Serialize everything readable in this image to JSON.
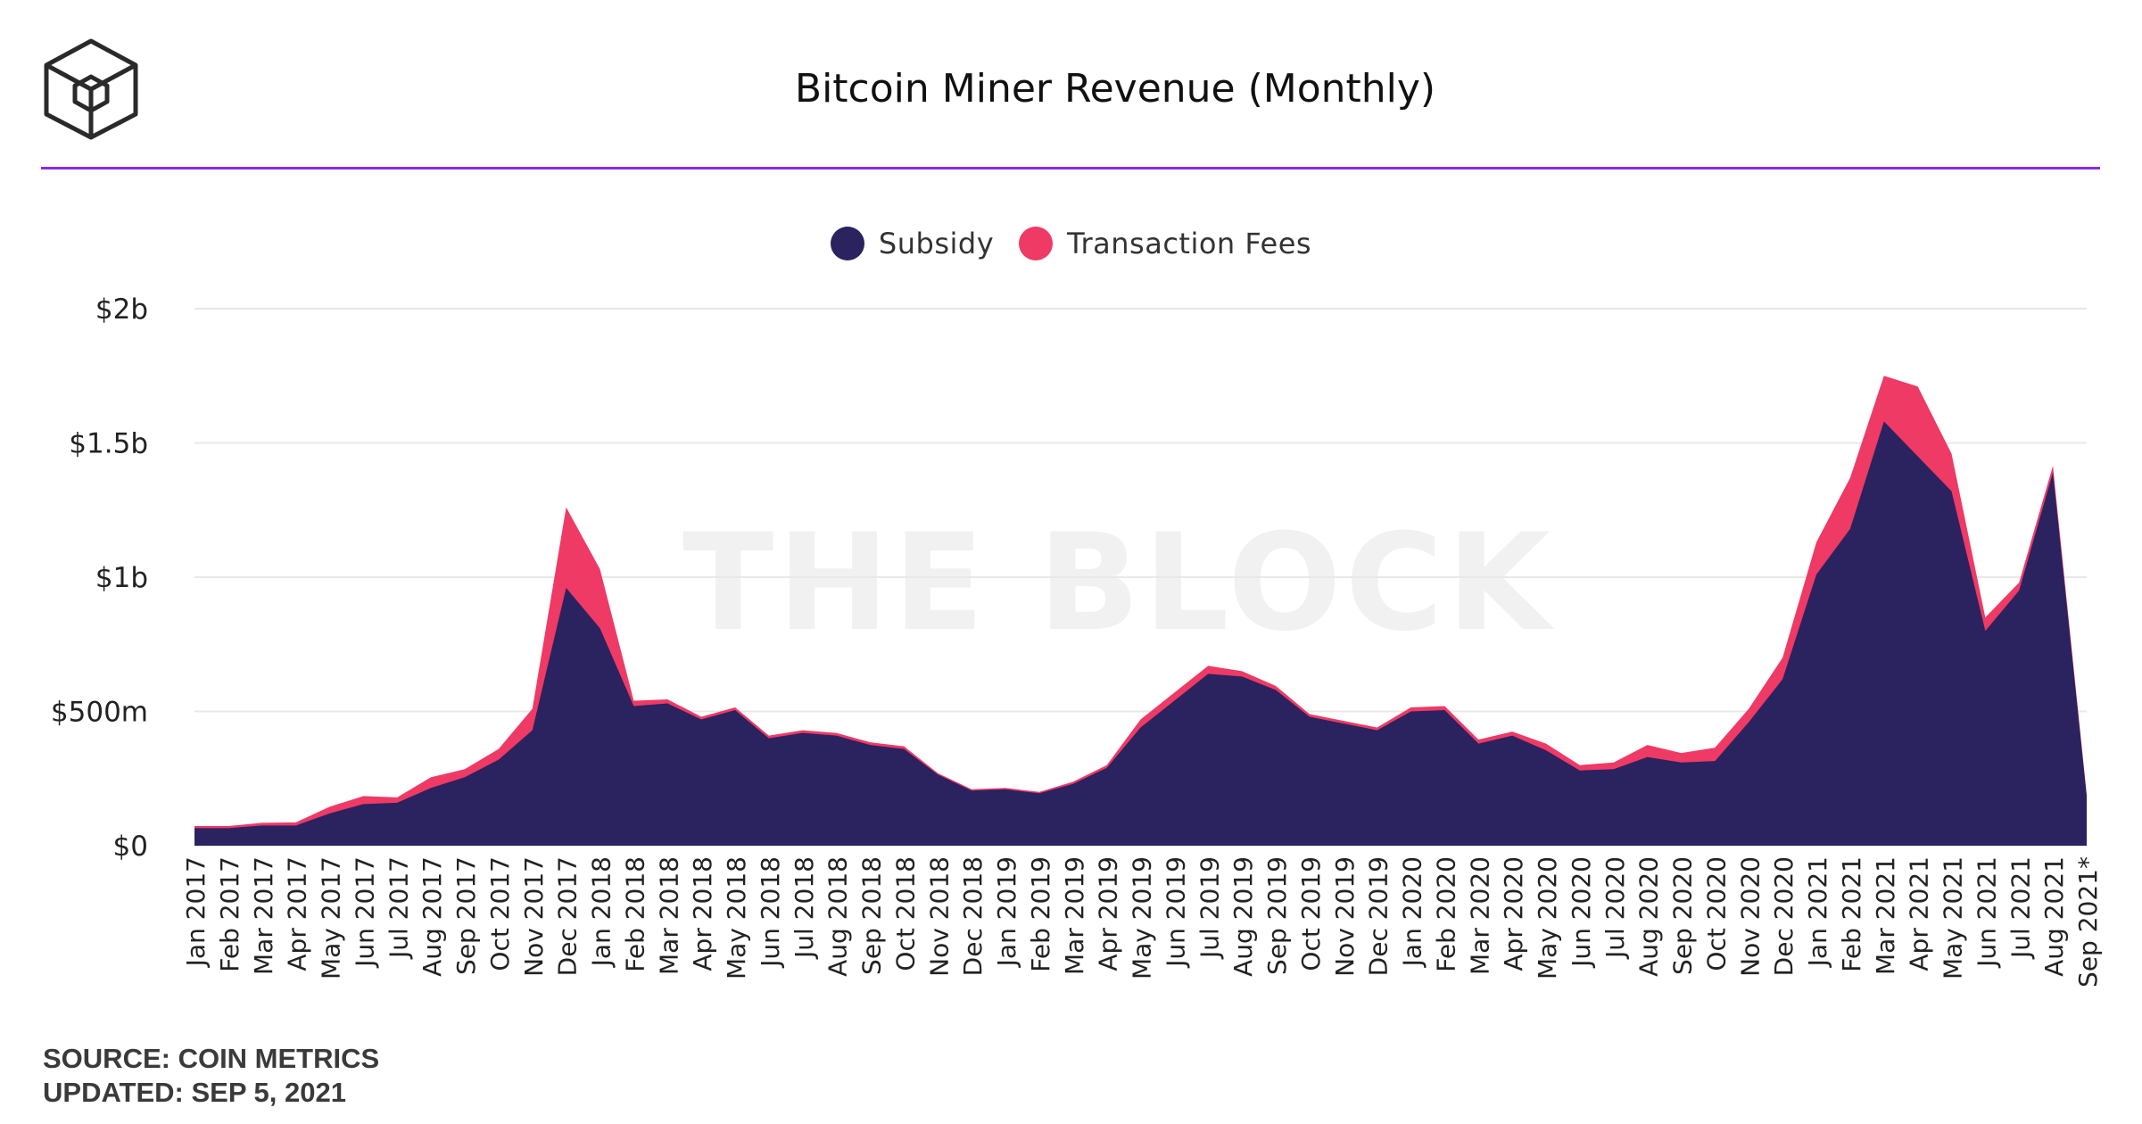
{
  "header": {
    "title": "Bitcoin Miner Revenue (Monthly)",
    "logo_icon": "the-block-cube-logo",
    "rule_color": "#8a2be2"
  },
  "watermark": "THE BLOCK",
  "footer": {
    "source": "SOURCE: COIN METRICS",
    "updated": "UPDATED: SEP 5, 2021"
  },
  "colors": {
    "subsidy": "#2b2260",
    "fees": "#ee3a64",
    "grid": "#e8e8e8",
    "axis_text": "#222222"
  },
  "chart_data": {
    "type": "area",
    "stacked": true,
    "title": "Bitcoin Miner Revenue (Monthly)",
    "legend_position": "top-center",
    "grid": true,
    "ylim": [
      0,
      2000
    ],
    "y_unit": "millions USD",
    "yticks": [
      {
        "value": 0,
        "label": "$0"
      },
      {
        "value": 500,
        "label": "$500m"
      },
      {
        "value": 1000,
        "label": "$1b"
      },
      {
        "value": 1500,
        "label": "$1.5b"
      },
      {
        "value": 2000,
        "label": "$2b"
      }
    ],
    "categories": [
      "Jan 2017",
      "Feb 2017",
      "Mar 2017",
      "Apr 2017",
      "May 2017",
      "Jun 2017",
      "Jul 2017",
      "Aug 2017",
      "Sep 2017",
      "Oct 2017",
      "Nov 2017",
      "Dec 2017",
      "Jan 2018",
      "Feb 2018",
      "Mar 2018",
      "Apr 2018",
      "May 2018",
      "Jun 2018",
      "Jul 2018",
      "Aug 2018",
      "Sep 2018",
      "Oct 2018",
      "Nov 2018",
      "Dec 2018",
      "Jan 2019",
      "Feb 2019",
      "Mar 2019",
      "Apr 2019",
      "May 2019",
      "Jun 2019",
      "Jul 2019",
      "Aug 2019",
      "Sep 2019",
      "Oct 2019",
      "Nov 2019",
      "Dec 2019",
      "Jan 2020",
      "Feb 2020",
      "Mar 2020",
      "Apr 2020",
      "May 2020",
      "Jun 2020",
      "Jul 2020",
      "Aug 2020",
      "Sep 2020",
      "Oct 2020",
      "Nov 2020",
      "Dec 2020",
      "Jan 2021",
      "Feb 2021",
      "Mar 2021",
      "Apr 2021",
      "May 2021",
      "Jun 2021",
      "Jul 2021",
      "Aug 2021",
      "Sep 2021*"
    ],
    "series": [
      {
        "name": "Subsidy",
        "values": [
          65,
          65,
          75,
          75,
          120,
          155,
          160,
          215,
          255,
          320,
          430,
          960,
          810,
          520,
          530,
          470,
          505,
          400,
          420,
          410,
          375,
          360,
          265,
          205,
          210,
          195,
          230,
          290,
          440,
          540,
          640,
          630,
          580,
          480,
          455,
          430,
          500,
          505,
          380,
          410,
          355,
          280,
          285,
          330,
          310,
          315,
          460,
          620,
          1010,
          1180,
          1580,
          1450,
          1320,
          800,
          950,
          1390,
          185
        ],
        "color": "#2b2260"
      },
      {
        "name": "Transaction Fees",
        "values": [
          8,
          8,
          10,
          12,
          25,
          30,
          20,
          40,
          30,
          40,
          80,
          300,
          220,
          20,
          15,
          10,
          10,
          10,
          10,
          10,
          10,
          10,
          5,
          5,
          5,
          5,
          8,
          10,
          30,
          30,
          30,
          20,
          15,
          10,
          10,
          10,
          15,
          15,
          15,
          15,
          25,
          20,
          25,
          45,
          35,
          50,
          50,
          80,
          120,
          190,
          170,
          260,
          140,
          50,
          30,
          25,
          5
        ],
        "color": "#ee3a64"
      }
    ]
  }
}
